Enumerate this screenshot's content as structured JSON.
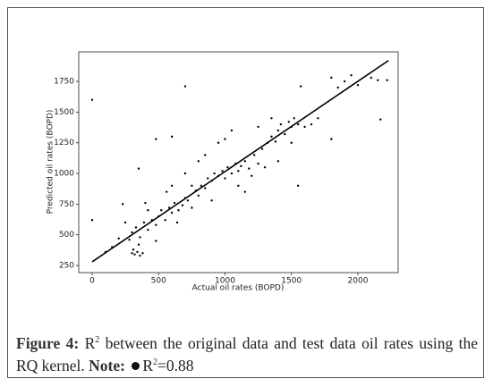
{
  "chart_data": {
    "type": "scatter",
    "xlabel": "Actual oil rates (BOPD)",
    "ylabel": "Predicted oil rates (BOPD)",
    "xlim": [
      -101,
      2303
    ],
    "ylim": [
      192,
      1991
    ],
    "xticks": [
      0,
      500,
      1000,
      1500,
      2000
    ],
    "yticks": [
      250,
      500,
      750,
      1000,
      1250,
      1500,
      1750
    ],
    "grid": false,
    "series": [
      {
        "kind": "points",
        "color": "#000000",
        "x": [
          300,
          320,
          340,
          360,
          380,
          310,
          350,
          280,
          300,
          330,
          360,
          390,
          420,
          450,
          480,
          500,
          520,
          550,
          580,
          600,
          620,
          650,
          680,
          700,
          720,
          750,
          780,
          800,
          820,
          850,
          870,
          900,
          920,
          950,
          980,
          1000,
          1020,
          1050,
          1080,
          1100,
          1120,
          1150,
          1180,
          1200,
          1220,
          1250,
          1280,
          1300,
          1320,
          1350,
          1380,
          1400,
          1420,
          1450,
          1480,
          1500,
          1520,
          1550,
          1600,
          1650,
          1700,
          1800,
          1850,
          1900,
          1950,
          2000,
          2100,
          2150,
          2220,
          200,
          150,
          100,
          250,
          420,
          480,
          560,
          640,
          700,
          850,
          900,
          1000,
          1100,
          1250,
          1400,
          1500,
          950,
          600,
          800,
          1150,
          0,
          700,
          480,
          600,
          1550,
          1800,
          1570,
          2170,
          0,
          350,
          230,
          1050,
          1350,
          750,
          400
        ],
        "values": [
          350,
          340,
          360,
          330,
          350,
          380,
          420,
          460,
          520,
          560,
          480,
          600,
          540,
          620,
          580,
          650,
          700,
          620,
          720,
          680,
          760,
          700,
          740,
          800,
          780,
          720,
          860,
          820,
          900,
          880,
          960,
          940,
          1000,
          980,
          1020,
          960,
          1050,
          1000,
          1080,
          1020,
          1060,
          1100,
          1040,
          980,
          1150,
          1080,
          1200,
          1050,
          1250,
          1300,
          1260,
          1350,
          1400,
          1320,
          1420,
          1380,
          1450,
          1400,
          1380,
          1400,
          1450,
          1780,
          1700,
          1750,
          1800,
          1720,
          1780,
          1760,
          1760,
          470,
          400,
          360,
          600,
          700,
          450,
          850,
          600,
          1000,
          1150,
          780,
          1280,
          900,
          1380,
          1100,
          1250,
          1250,
          900,
          1100,
          850,
          1600,
          1710,
          1280,
          1300,
          900,
          1280,
          1710,
          1440,
          620,
          1040,
          750,
          1350,
          1450,
          900,
          760
        ]
      },
      {
        "kind": "line",
        "color": "#000000",
        "x": [
          0,
          2230
        ],
        "values": [
          280,
          1920
        ]
      }
    ]
  },
  "caption": {
    "label": "Figure 4:",
    "r": "R",
    "sup": "2",
    "text": "between the original data and test data oil rates using the RQ kernel.",
    "note_label": "Note:",
    "note_r": "R",
    "note_sup": "2",
    "note_value": "=0.88"
  }
}
